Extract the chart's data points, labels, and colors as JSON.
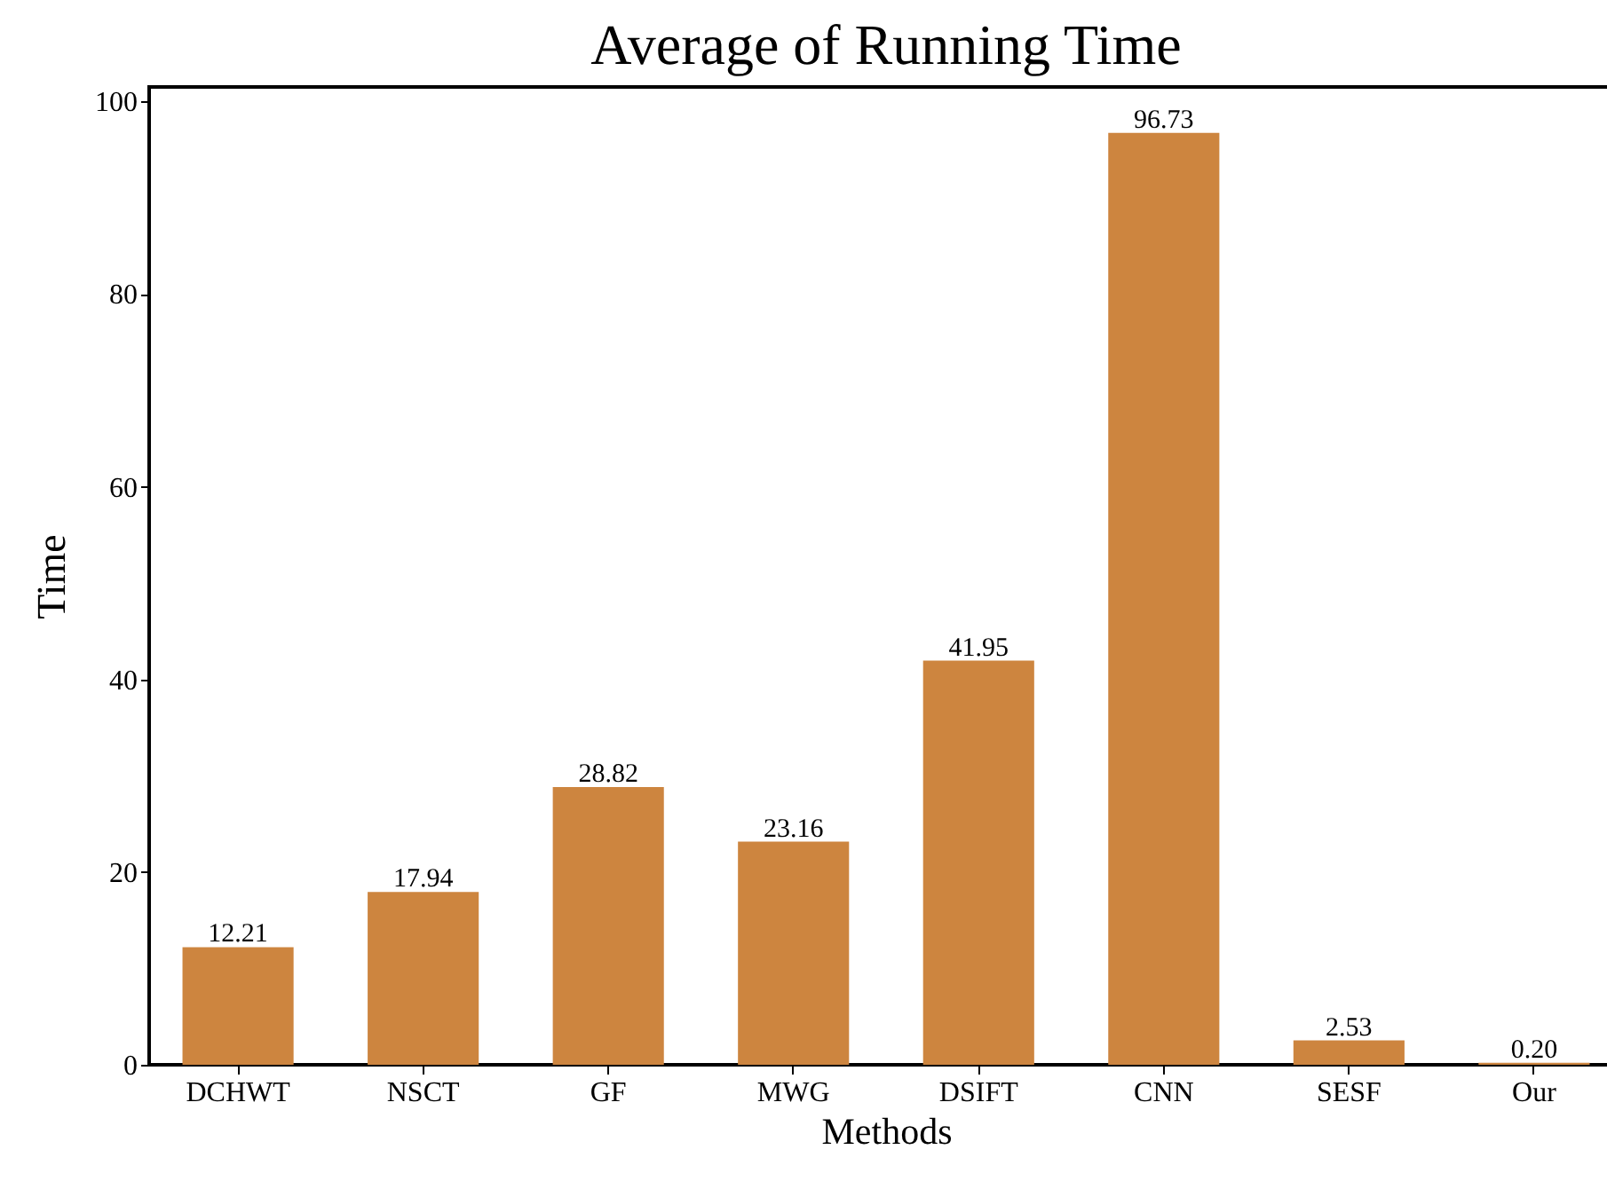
{
  "chart_data": {
    "type": "bar",
    "title": "Average of Running Time",
    "xlabel": "Methods",
    "ylabel": "Time",
    "categories": [
      "DCHWT",
      "NSCT",
      "GF",
      "MWG",
      "DSIFT",
      "CNN",
      "SESF",
      "Our"
    ],
    "values": [
      12.21,
      17.94,
      28.82,
      23.16,
      41.95,
      96.73,
      2.53,
      0.2
    ],
    "color": "#cd853f",
    "ylim": [
      0,
      101.5
    ],
    "yticks": [
      0,
      20,
      40,
      60,
      80,
      100
    ],
    "grid": false,
    "value_labels": [
      "12.21",
      "17.94",
      "28.82",
      "23.16",
      "41.95",
      "96.73",
      "2.53",
      "0.20"
    ]
  }
}
